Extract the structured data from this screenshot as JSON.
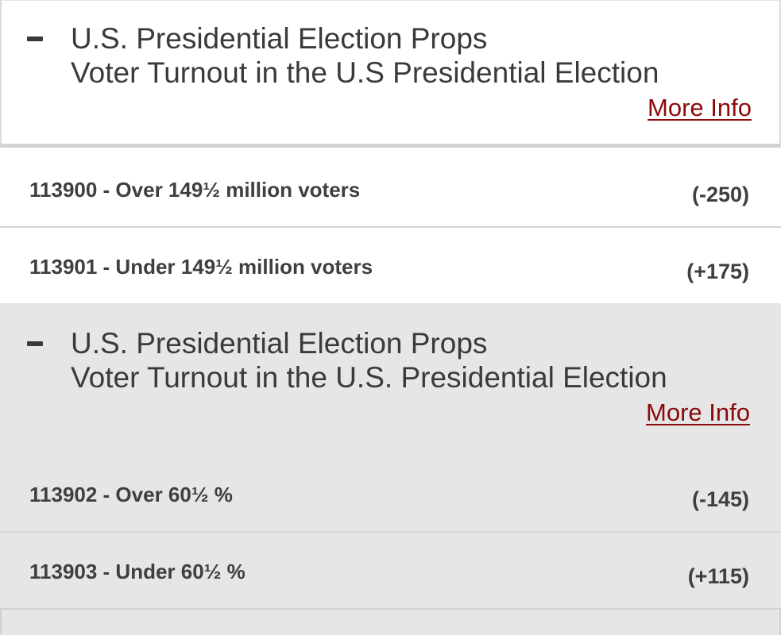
{
  "sections": [
    {
      "category": "U.S. Presidential Election Props",
      "title": "Voter Turnout in the U.S Presidential Election",
      "more_info": "More Info",
      "collapse_icon": "minus-icon",
      "options": [
        {
          "label": "113900 - Over 149½ million voters",
          "odds": "(-250)"
        },
        {
          "label": "113901 - Under 149½ million voters",
          "odds": "(+175)"
        }
      ]
    },
    {
      "category": "U.S. Presidential Election Props",
      "title": "Voter Turnout in the U.S. Presidential Election",
      "more_info": "More Info",
      "collapse_icon": "minus-icon",
      "options": [
        {
          "label": "113902 - Over 60½ %",
          "odds": "(-145)"
        },
        {
          "label": "113903 - Under 60½ %",
          "odds": "(+115)"
        }
      ]
    }
  ],
  "colors": {
    "link": "#8b0a0a",
    "text": "#3a3a3a",
    "grey_bg": "#e6e6e6"
  }
}
